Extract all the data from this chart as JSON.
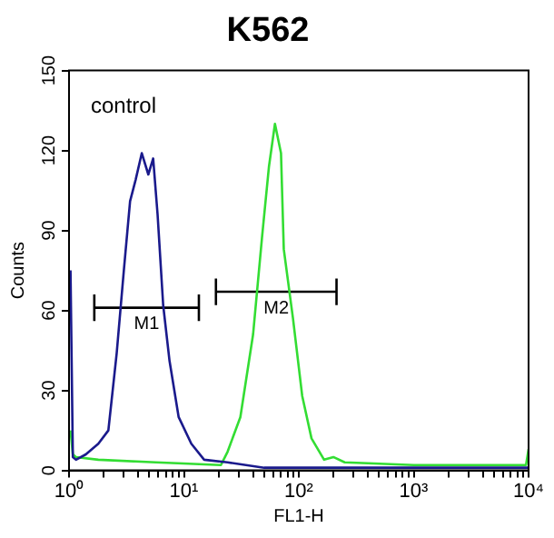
{
  "chart_data": {
    "type": "line",
    "title": "K562",
    "xlabel": "FL1-H",
    "ylabel": "Counts",
    "log": "x",
    "grid": false,
    "legend": false,
    "marker": "none",
    "line_style": "solid",
    "xlim": [
      1,
      10000
    ],
    "xticks": [
      {
        "value": 1,
        "label": "10⁰"
      },
      {
        "value": 2,
        "label": null
      },
      {
        "value": 3,
        "label": null
      },
      {
        "value": 4,
        "label": null
      },
      {
        "value": 5,
        "label": null
      },
      {
        "value": 6,
        "label": null
      },
      {
        "value": 7,
        "label": null
      },
      {
        "value": 8,
        "label": null
      },
      {
        "value": 9,
        "label": null
      },
      {
        "value": 10,
        "label": "10¹"
      },
      {
        "value": 20,
        "label": null
      },
      {
        "value": 30,
        "label": null
      },
      {
        "value": 40,
        "label": null
      },
      {
        "value": 50,
        "label": null
      },
      {
        "value": 60,
        "label": null
      },
      {
        "value": 70,
        "label": null
      },
      {
        "value": 80,
        "label": null
      },
      {
        "value": 90,
        "label": null
      },
      {
        "value": 100,
        "label": "10²"
      },
      {
        "value": 200,
        "label": null
      },
      {
        "value": 300,
        "label": null
      },
      {
        "value": 400,
        "label": null
      },
      {
        "value": 500,
        "label": null
      },
      {
        "value": 600,
        "label": null
      },
      {
        "value": 700,
        "label": null
      },
      {
        "value": 800,
        "label": null
      },
      {
        "value": 900,
        "label": null
      },
      {
        "value": 1000,
        "label": "10³"
      },
      {
        "value": 2000,
        "label": null
      },
      {
        "value": 3000,
        "label": null
      },
      {
        "value": 4000,
        "label": null
      },
      {
        "value": 5000,
        "label": null
      },
      {
        "value": 6000,
        "label": null
      },
      {
        "value": 7000,
        "label": null
      },
      {
        "value": 8000,
        "label": null
      },
      {
        "value": 9000,
        "label": null
      },
      {
        "value": 10000,
        "label": "10⁴"
      }
    ],
    "ylim": [
      0,
      150
    ],
    "yticks": [
      0,
      30,
      60,
      90,
      120,
      150
    ],
    "series": [
      {
        "color": "#1a1a8c",
        "x": [
          1.03,
          1.08,
          1.15,
          1.4,
          1.8,
          2.2,
          2.6,
          3,
          3.4,
          3.8,
          4.3,
          4.9,
          5.4,
          5.9,
          6.6,
          7.5,
          9,
          11.6,
          15,
          24,
          50,
          200,
          1000,
          10000
        ],
        "values": [
          75,
          5,
          4,
          6,
          10,
          15,
          44,
          75,
          101,
          109,
          119,
          111,
          117,
          96,
          62,
          41,
          20,
          10,
          4,
          3,
          1,
          1,
          1,
          1
        ]
      },
      {
        "color": "#33dd33",
        "x": [
          1.03,
          1.08,
          1.15,
          1.8,
          5.7,
          21,
          24,
          31,
          40,
          48,
          55,
          62,
          70,
          74,
          89,
          107,
          129,
          166,
          200,
          251,
          1000,
          9500,
          10000
        ],
        "values": [
          15,
          6,
          5,
          4,
          3,
          2,
          7,
          20,
          51,
          88,
          114,
          130,
          119,
          83,
          57,
          28,
          12,
          4,
          5,
          3,
          2,
          2,
          8
        ]
      },
      {
        "name": "M1",
        "color": "#000000",
        "x": [
          1.66,
          13.5
        ],
        "values": [
          61,
          61
        ],
        "errors": [
          5,
          5
        ]
      },
      {
        "name": "M2",
        "color": "#000000",
        "x": [
          19,
          213
        ],
        "values": [
          67,
          67
        ],
        "errors": [
          5,
          5
        ]
      }
    ],
    "annotations": [
      "control"
    ]
  }
}
